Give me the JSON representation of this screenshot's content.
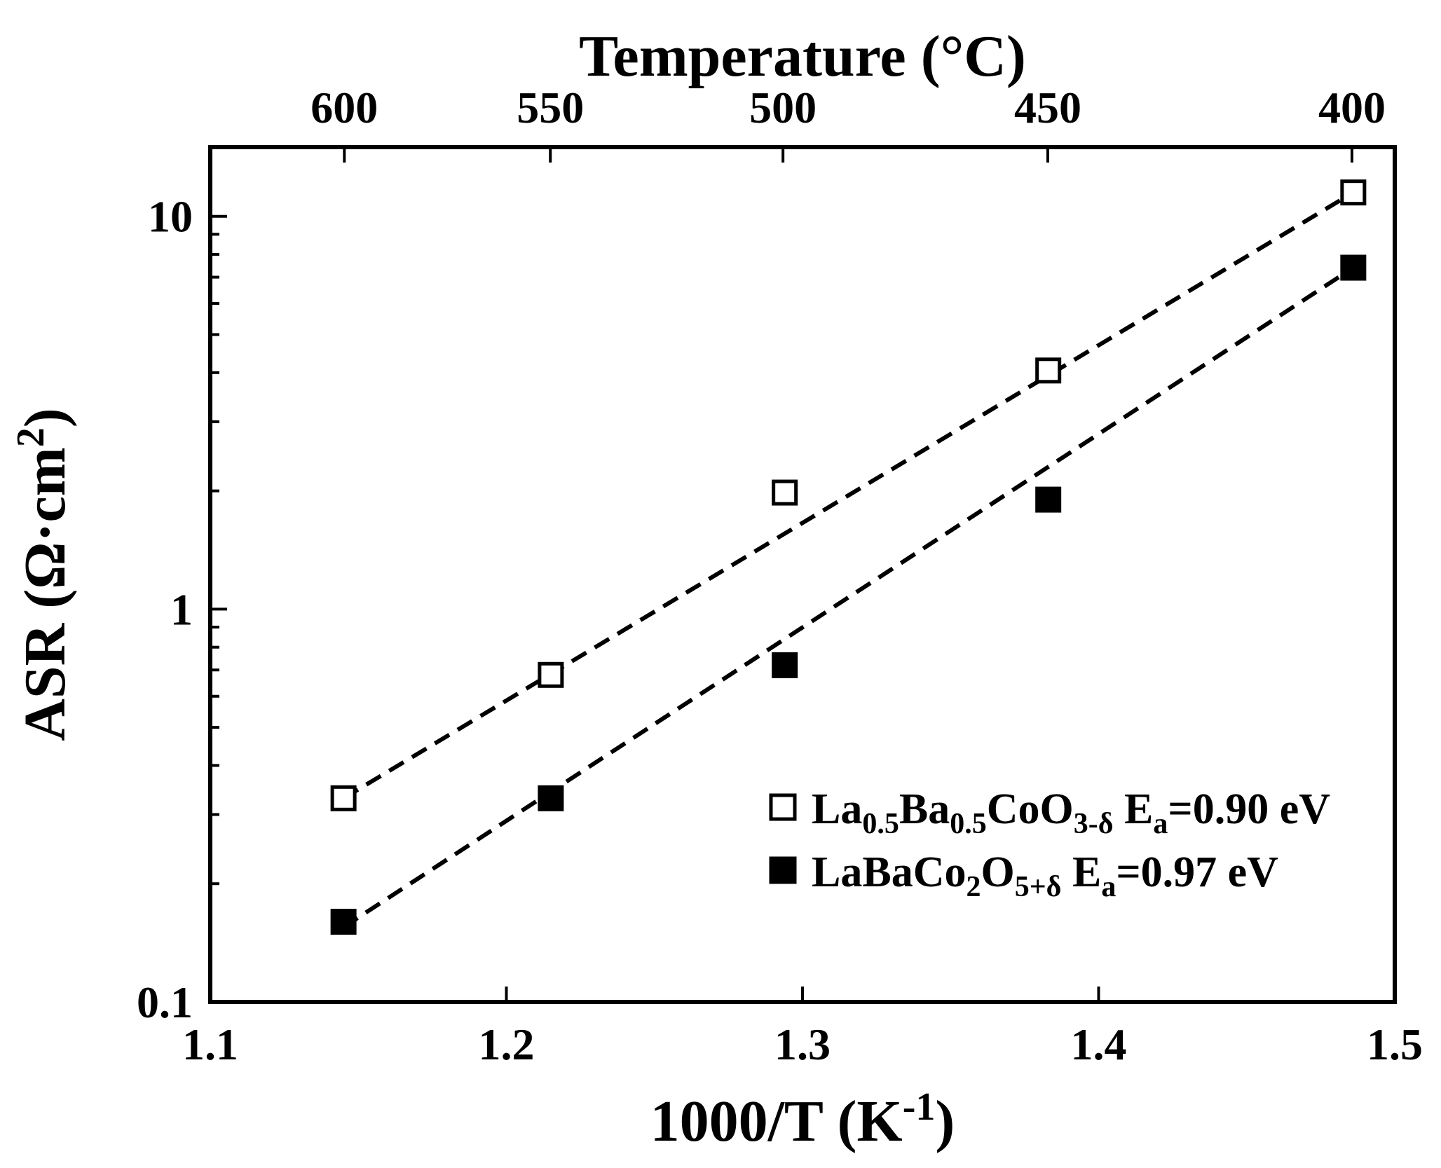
{
  "chart_data": {
    "type": "scatter",
    "title": "",
    "xlabel": {
      "base": "1000/T (K",
      "sup": "-1",
      "tail": ")"
    },
    "ylabel": {
      "base": "ASR (Ω·cm",
      "sup": "2",
      "tail": ")"
    },
    "top_axis_label": "Temperature (°C)",
    "xlim": [
      1.1,
      1.5
    ],
    "ylim": [
      0.1,
      15
    ],
    "yscale": "log",
    "x_ticks": [
      1.1,
      1.2,
      1.3,
      1.4,
      1.5
    ],
    "x_tick_labels": [
      "1.1",
      "1.2",
      "1.3",
      "1.4",
      "1.5"
    ],
    "y_ticks": [
      0.1,
      1,
      10
    ],
    "y_tick_labels": [
      "0.1",
      "1",
      "10"
    ],
    "top_ticks_celsius": [
      600,
      550,
      500,
      450,
      400
    ],
    "top_tick_labels": [
      "600",
      "550",
      "500",
      "450",
      "400"
    ],
    "grid": false,
    "legend_position": "bottom-right",
    "series": [
      {
        "name": "La0.5Ba0.5CoO3-δ Ea=0.90 eV",
        "name_parts": [
          {
            "t": "La"
          },
          {
            "t": "0.5",
            "sub": true
          },
          {
            "t": "Ba"
          },
          {
            "t": "0.5",
            "sub": true
          },
          {
            "t": "CoO"
          },
          {
            "t": "3-δ",
            "sub": true
          },
          {
            "t": " E"
          },
          {
            "t": "a",
            "sub": true
          },
          {
            "t": "=0.90 eV"
          }
        ],
        "marker": "open-square",
        "x": [
          1.145,
          1.215,
          1.294,
          1.383,
          1.486
        ],
        "y": [
          0.33,
          0.68,
          1.98,
          4.05,
          11.5
        ],
        "fit": {
          "x": [
            1.145,
            1.486
          ],
          "y": [
            0.33,
            11.5
          ]
        }
      },
      {
        "name": "LaBaCo2O5+δ Ea=0.97 eV",
        "name_parts": [
          {
            "t": "LaBaCo"
          },
          {
            "t": "2",
            "sub": true
          },
          {
            "t": "O"
          },
          {
            "t": "5+δ",
            "sub": true
          },
          {
            "t": " E"
          },
          {
            "t": "a",
            "sub": true
          },
          {
            "t": "=0.97 eV"
          }
        ],
        "marker": "filled-square",
        "x": [
          1.145,
          1.215,
          1.294,
          1.383,
          1.486
        ],
        "y": [
          0.16,
          0.33,
          0.72,
          1.9,
          7.4
        ],
        "fit": {
          "x": [
            1.145,
            1.486
          ],
          "y": [
            0.155,
            7.4
          ]
        }
      }
    ]
  }
}
